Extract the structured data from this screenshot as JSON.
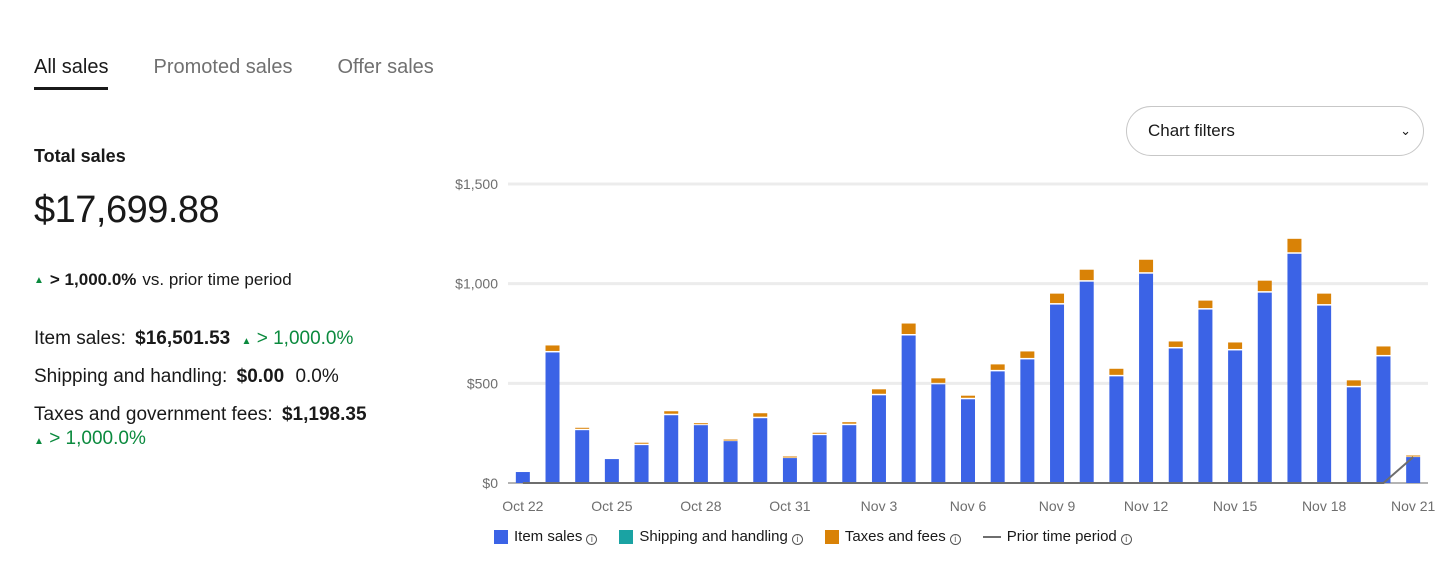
{
  "tabs": [
    {
      "label": "All sales",
      "active": true
    },
    {
      "label": "Promoted sales",
      "active": false
    },
    {
      "label": "Offer sales",
      "active": false
    }
  ],
  "summary": {
    "total_label": "Total sales",
    "total_value": "$17,699.88",
    "change_value": "> 1,000.0%",
    "change_suffix": "vs. prior time period",
    "item_sales_label": "Item sales:",
    "item_sales_value": "$16,501.53",
    "item_sales_change": "> 1,000.0%",
    "shipping_label": "Shipping and handling:",
    "shipping_value": "$0.00",
    "shipping_change": "0.0%",
    "taxes_label": "Taxes and government fees:",
    "taxes_value": "$1,198.35",
    "taxes_change": "> 1,000.0%"
  },
  "filters": {
    "label": "Chart filters"
  },
  "colors": {
    "item_sales": "#3b63e6",
    "shipping": "#1aa3a3",
    "taxes": "#d98206",
    "prior": "#6e6e6e",
    "positive": "#0b8a3e"
  },
  "legend": [
    {
      "label": "Item sales",
      "color": "#3b63e6",
      "kind": "box"
    },
    {
      "label": "Shipping and handling",
      "color": "#1aa3a3",
      "kind": "box"
    },
    {
      "label": "Taxes and fees",
      "color": "#d98206",
      "kind": "box"
    },
    {
      "label": "Prior time period",
      "color": "#6e6e6e",
      "kind": "line"
    }
  ],
  "chart_data": {
    "type": "bar",
    "stacked": true,
    "x": [
      "Oct 22",
      "Oct 23",
      "Oct 24",
      "Oct 25",
      "Oct 26",
      "Oct 27",
      "Oct 28",
      "Oct 29",
      "Oct 30",
      "Oct 31",
      "Nov 1",
      "Nov 2",
      "Nov 3",
      "Nov 4",
      "Nov 5",
      "Nov 6",
      "Nov 7",
      "Nov 8",
      "Nov 9",
      "Nov 10",
      "Nov 11",
      "Nov 12",
      "Nov 13",
      "Nov 14",
      "Nov 15",
      "Nov 16",
      "Nov 17",
      "Nov 18",
      "Nov 19",
      "Nov 20",
      "Nov 21"
    ],
    "x_tick_labels": [
      "Oct 22",
      "Oct 25",
      "Oct 28",
      "Oct 31",
      "Nov 3",
      "Nov 6",
      "Nov 9",
      "Nov 12",
      "Nov 15",
      "Nov 18",
      "Nov 21"
    ],
    "series": [
      {
        "name": "Item sales",
        "values": [
          55,
          655,
          265,
          120,
          190,
          340,
          290,
          210,
          325,
          125,
          240,
          290,
          440,
          740,
          495,
          420,
          560,
          620,
          895,
          1010,
          535,
          1050,
          675,
          870,
          665,
          955,
          1150,
          890,
          480,
          635,
          130
        ]
      },
      {
        "name": "Shipping and handling",
        "values": [
          0,
          0,
          0,
          0,
          0,
          0,
          0,
          0,
          0,
          0,
          0,
          0,
          0,
          0,
          0,
          0,
          0,
          0,
          0,
          0,
          0,
          0,
          0,
          0,
          0,
          0,
          0,
          0,
          0,
          0,
          0
        ]
      },
      {
        "name": "Taxes and fees",
        "values": [
          0,
          35,
          12,
          0,
          12,
          20,
          10,
          8,
          25,
          8,
          12,
          15,
          30,
          60,
          30,
          18,
          35,
          40,
          55,
          60,
          38,
          70,
          35,
          45,
          40,
          60,
          75,
          60,
          35,
          50,
          8
        ]
      }
    ],
    "prior_period": {
      "name": "Prior time period",
      "values": [
        0,
        0,
        0,
        0,
        0,
        0,
        0,
        0,
        0,
        0,
        0,
        0,
        0,
        0,
        0,
        0,
        0,
        0,
        0,
        0,
        0,
        0,
        0,
        0,
        0,
        0,
        0,
        0,
        0,
        0,
        130
      ]
    },
    "y_ticks": [
      "$0",
      "$500",
      "$1,000",
      "$1,500"
    ],
    "ylim": [
      0,
      1500
    ],
    "grid": true,
    "legend_position": "bottom"
  }
}
